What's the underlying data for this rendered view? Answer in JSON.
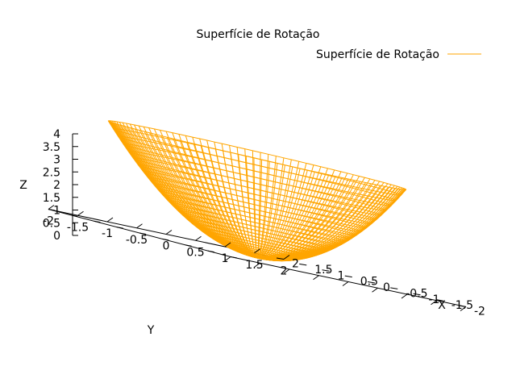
{
  "chart_data": {
    "type": "surface",
    "title": "Superfície de Rotação",
    "function": "z = x^2 + y^2",
    "legend": {
      "label": "Superfície de Rotação",
      "position": "top-right"
    },
    "series": [
      {
        "name": "Superfície de Rotação",
        "color": "#ffa500"
      }
    ],
    "x": {
      "label": "X",
      "range": [
        -2,
        2
      ],
      "ticks": [
        -2,
        -1.5,
        -1,
        -0.5,
        0,
        0.5,
        1,
        1.5,
        2
      ],
      "tick_labels": [
        "-2",
        "-1.5",
        "-1",
        "-0.5",
        "0",
        "0.5",
        "1",
        "1.5",
        "2"
      ]
    },
    "y": {
      "label": "Y",
      "range": [
        -2,
        2
      ],
      "ticks": [
        -2,
        -1.5,
        -1,
        -0.5,
        0,
        0.5,
        1,
        1.5,
        2
      ],
      "tick_labels": [
        "-2",
        "-1.5",
        "-1",
        "-0.5",
        "0",
        "0.5",
        "1",
        "1.5",
        "2"
      ]
    },
    "z": {
      "label": "Z",
      "range": [
        0,
        4
      ],
      "ticks": [
        0,
        0.5,
        1,
        1.5,
        2,
        2.5,
        3,
        3.5,
        4
      ],
      "tick_labels": [
        "0",
        "0.5",
        "1",
        "1.5",
        "2",
        "2.5",
        "3",
        "3.5",
        "4"
      ]
    },
    "grid": false
  }
}
